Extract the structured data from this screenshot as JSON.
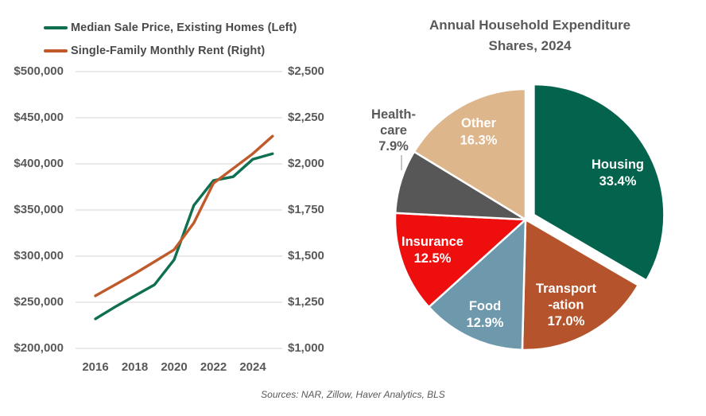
{
  "footer": {
    "text": "Sources: NAR, Zillow, Haver Analytics, BLS"
  },
  "colors": {
    "axis_text": "#595959",
    "legend_text": "#4A4A4A",
    "title_text": "#595959",
    "gridline": "#D6D6D6",
    "leader_line": "#A0A0A0",
    "background": "#FFFFFF"
  },
  "chart_data": [
    {
      "type": "line",
      "title": "",
      "legend_position": "top-left",
      "grid": true,
      "x": [
        2016,
        2017,
        2018,
        2019,
        2020,
        2021,
        2022,
        2023,
        2024,
        2025
      ],
      "x_ticks": [
        "2016",
        "2018",
        "2020",
        "2022",
        "2024"
      ],
      "series": [
        {
          "name": "Median Sale Price, Existing Homes (Left)",
          "axis": "left",
          "color": "#0E6F51",
          "values": [
            232000,
            245000,
            257000,
            269000,
            296000,
            355000,
            382000,
            386000,
            405000,
            411000
          ]
        },
        {
          "name": "Single-Family Monthly Rent (Right)",
          "axis": "right",
          "color": "#C05A2B",
          "values": [
            1285,
            1345,
            1405,
            1470,
            1535,
            1680,
            1895,
            1975,
            2055,
            2150
          ]
        }
      ],
      "left_axis": {
        "min": 200000,
        "max": 500000,
        "ticks": [
          "$500,000",
          "$450,000",
          "$400,000",
          "$350,000",
          "$300,000",
          "$250,000",
          "$200,000"
        ]
      },
      "right_axis": {
        "min": 1000,
        "max": 2500,
        "ticks": [
          "$2,500",
          "$2,250",
          "$2,000",
          "$1,750",
          "$1,500",
          "$1,250",
          "$1,000"
        ]
      }
    },
    {
      "type": "pie",
      "title": "Annual Household Expenditure Shares, 2024",
      "title_lines": {
        "line1": "Annual Household Expenditure",
        "line2": "Shares, 2024"
      },
      "slices": [
        {
          "label": "Housing",
          "label_lines": [
            "Housing"
          ],
          "pct": 33.4,
          "display": "33.4%",
          "color": "#03634C",
          "text_color": "#FFFFFF",
          "exploded": true
        },
        {
          "label": "Transportation",
          "label_lines": [
            "Transport",
            "-ation"
          ],
          "pct": 17.0,
          "display": "17.0%",
          "color": "#B5542C",
          "text_color": "#FFFFFF"
        },
        {
          "label": "Food",
          "label_lines": [
            "Food"
          ],
          "pct": 12.9,
          "display": "12.9%",
          "color": "#6E99AC",
          "text_color": "#FFFFFF"
        },
        {
          "label": "Insurance",
          "label_lines": [
            "Insurance"
          ],
          "pct": 12.5,
          "display": "12.5%",
          "color": "#EE0E0E",
          "text_color": "#FFFFFF"
        },
        {
          "label": "Healthcare",
          "label_lines": [
            "Health-",
            "care"
          ],
          "pct": 7.9,
          "display": "7.9%",
          "color": "#575757",
          "text_color": "#595959",
          "label_outside": true
        },
        {
          "label": "Other",
          "label_lines": [
            "Other"
          ],
          "pct": 16.3,
          "display": "16.3%",
          "color": "#DDB68C",
          "text_color": "#FFFFFF"
        }
      ]
    }
  ]
}
